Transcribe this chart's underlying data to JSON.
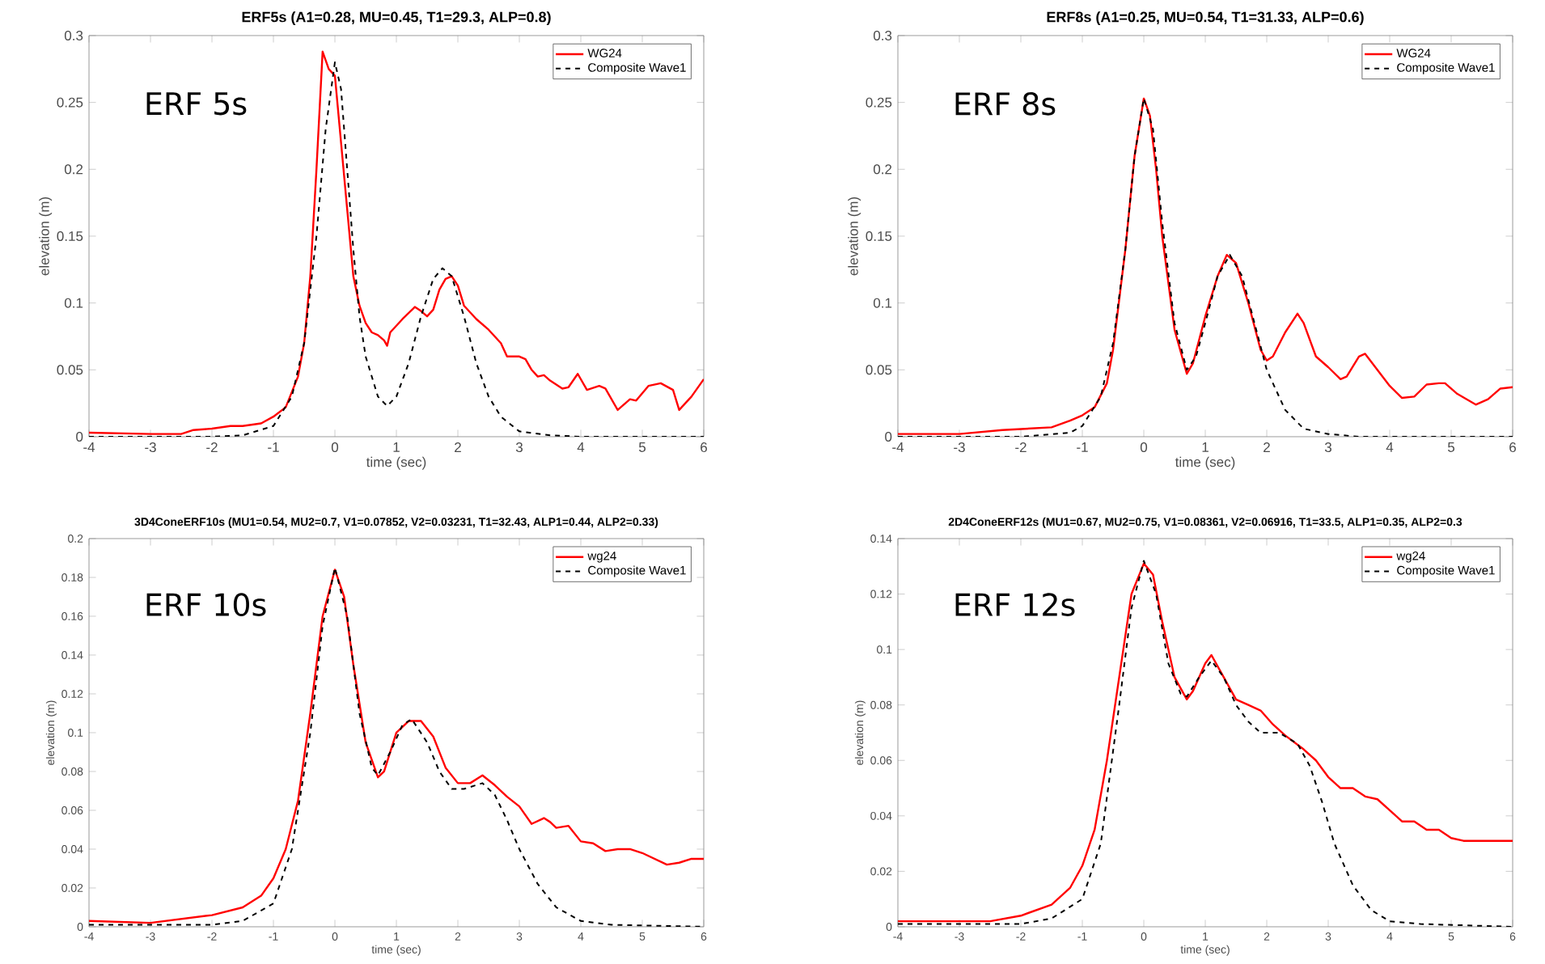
{
  "chart_data": [
    {
      "type": "line",
      "title": "ERF5s (A1=0.28, MU=0.45, T1=29.3, ALP=0.8)",
      "xlabel": "time (sec)",
      "ylabel": "elevation (m)",
      "annotations": [
        "ERF 5s"
      ],
      "legend": "top right",
      "xlim": [
        -4,
        6
      ],
      "ylim": [
        0,
        0.3
      ],
      "xticks": [
        -4,
        -3,
        -2,
        -1,
        0,
        1,
        2,
        3,
        4,
        5,
        6
      ],
      "yticks": [
        0,
        0.05,
        0.1,
        0.15,
        0.2,
        0.25,
        0.3
      ],
      "series": [
        {
          "name": "WG24",
          "color": "#ff0000",
          "line_style": "solid",
          "x": [
            -4,
            -3,
            -2.5,
            -2.3,
            -2,
            -1.7,
            -1.5,
            -1.2,
            -1,
            -0.8,
            -0.6,
            -0.5,
            -0.4,
            -0.3,
            -0.2,
            -0.1,
            0,
            0.1,
            0.2,
            0.3,
            0.4,
            0.5,
            0.6,
            0.7,
            0.8,
            0.85,
            0.9,
            1.0,
            1.1,
            1.3,
            1.4,
            1.5,
            1.6,
            1.7,
            1.8,
            1.9,
            2.0,
            2.1,
            2.3,
            2.5,
            2.7,
            2.8,
            3.0,
            3.1,
            3.2,
            3.3,
            3.4,
            3.5,
            3.7,
            3.8,
            3.95,
            4.1,
            4.3,
            4.4,
            4.6,
            4.8,
            4.9,
            5.1,
            5.3,
            5.5,
            5.6,
            5.8,
            6
          ],
          "values": [
            0.003,
            0.002,
            0.002,
            0.005,
            0.006,
            0.008,
            0.008,
            0.01,
            0.015,
            0.022,
            0.045,
            0.07,
            0.12,
            0.2,
            0.288,
            0.275,
            0.27,
            0.22,
            0.17,
            0.12,
            0.098,
            0.085,
            0.078,
            0.076,
            0.072,
            0.068,
            0.078,
            0.083,
            0.088,
            0.097,
            0.094,
            0.09,
            0.095,
            0.11,
            0.118,
            0.12,
            0.113,
            0.098,
            0.088,
            0.08,
            0.07,
            0.06,
            0.06,
            0.058,
            0.05,
            0.045,
            0.046,
            0.042,
            0.036,
            0.037,
            0.047,
            0.035,
            0.038,
            0.036,
            0.02,
            0.028,
            0.027,
            0.038,
            0.04,
            0.035,
            0.02,
            0.03,
            0.043
          ]
        },
        {
          "name": "Composite Wave1",
          "color": "#000000",
          "line_style": "dashed",
          "x": [
            -4,
            -2,
            -1.5,
            -1,
            -0.7,
            -0.5,
            -0.3,
            -0.15,
            0,
            0.1,
            0.2,
            0.3,
            0.4,
            0.5,
            0.7,
            0.85,
            1.0,
            1.2,
            1.4,
            1.6,
            1.75,
            1.9,
            2.1,
            2.3,
            2.5,
            2.7,
            3,
            3.5,
            4,
            6
          ],
          "values": [
            0,
            0,
            0.001,
            0.008,
            0.03,
            0.07,
            0.15,
            0.23,
            0.28,
            0.26,
            0.2,
            0.14,
            0.09,
            0.06,
            0.03,
            0.023,
            0.03,
            0.055,
            0.09,
            0.118,
            0.126,
            0.12,
            0.09,
            0.055,
            0.03,
            0.015,
            0.004,
            0.001,
            0,
            0
          ]
        }
      ]
    },
    {
      "type": "line",
      "title": "ERF8s (A1=0.25, MU=0.54, T1=31.33, ALP=0.6)",
      "xlabel": "time (sec)",
      "ylabel": "elevation (m)",
      "annotations": [
        "ERF 8s"
      ],
      "legend": "top right",
      "xlim": [
        -4,
        6
      ],
      "ylim": [
        0,
        0.3
      ],
      "xticks": [
        -4,
        -3,
        -2,
        -1,
        0,
        1,
        2,
        3,
        4,
        5,
        6
      ],
      "yticks": [
        0,
        0.05,
        0.1,
        0.15,
        0.2,
        0.25,
        0.3
      ],
      "series": [
        {
          "name": "WG24",
          "color": "#ff0000",
          "line_style": "solid",
          "x": [
            -4,
            -3,
            -2.3,
            -1.5,
            -1.2,
            -1,
            -0.8,
            -0.6,
            -0.5,
            -0.3,
            -0.15,
            0,
            0.1,
            0.2,
            0.3,
            0.5,
            0.7,
            0.8,
            1.0,
            1.2,
            1.35,
            1.5,
            1.7,
            1.9,
            2.0,
            2.1,
            2.3,
            2.5,
            2.6,
            2.8,
            3.0,
            3.2,
            3.3,
            3.5,
            3.6,
            3.8,
            4.0,
            4.2,
            4.4,
            4.6,
            4.8,
            4.9,
            5.1,
            5.4,
            5.6,
            5.8,
            6
          ],
          "values": [
            0.002,
            0.002,
            0.005,
            0.007,
            0.012,
            0.016,
            0.022,
            0.04,
            0.065,
            0.14,
            0.21,
            0.253,
            0.24,
            0.2,
            0.15,
            0.08,
            0.047,
            0.055,
            0.09,
            0.12,
            0.136,
            0.13,
            0.1,
            0.065,
            0.057,
            0.06,
            0.078,
            0.092,
            0.085,
            0.06,
            0.052,
            0.043,
            0.045,
            0.06,
            0.062,
            0.05,
            0.038,
            0.029,
            0.03,
            0.039,
            0.04,
            0.04,
            0.032,
            0.024,
            0.028,
            0.036,
            0.037
          ]
        },
        {
          "name": "Composite Wave1",
          "color": "#000000",
          "line_style": "dashed",
          "x": [
            -4,
            -2,
            -1.2,
            -1,
            -0.7,
            -0.5,
            -0.3,
            -0.15,
            0,
            0.15,
            0.3,
            0.5,
            0.7,
            0.85,
            1.0,
            1.2,
            1.4,
            1.6,
            1.8,
            2.0,
            2.3,
            2.6,
            3,
            3.5,
            6
          ],
          "values": [
            0,
            0,
            0.003,
            0.008,
            0.03,
            0.07,
            0.14,
            0.21,
            0.253,
            0.23,
            0.16,
            0.085,
            0.05,
            0.06,
            0.085,
            0.12,
            0.136,
            0.12,
            0.085,
            0.05,
            0.02,
            0.006,
            0.002,
            0,
            0
          ]
        }
      ]
    },
    {
      "type": "line",
      "title": "3D4ConeERF10s (MU1=0.54, MU2=0.7, V1=0.07852, V2=0.03231, T1=32.43, ALP1=0.44, ALP2=0.33)",
      "xlabel": "time (sec)",
      "ylabel": "elevation (m)",
      "annotations": [
        "ERF 10s"
      ],
      "legend": "top right",
      "xlim": [
        -4,
        6
      ],
      "ylim": [
        0,
        0.2
      ],
      "xticks": [
        -4,
        -3,
        -2,
        -1,
        0,
        1,
        2,
        3,
        4,
        5,
        6
      ],
      "yticks": [
        0,
        0.02,
        0.04,
        0.06,
        0.08,
        0.1,
        0.12,
        0.14,
        0.16,
        0.18,
        0.2
      ],
      "series": [
        {
          "name": "wg24",
          "color": "#ff0000",
          "line_style": "solid",
          "x": [
            -4,
            -3,
            -2.5,
            -2,
            -1.5,
            -1.2,
            -1,
            -0.8,
            -0.6,
            -0.4,
            -0.2,
            0,
            0.15,
            0.3,
            0.5,
            0.7,
            0.8,
            1.0,
            1.2,
            1.4,
            1.6,
            1.8,
            2.0,
            2.2,
            2.4,
            2.6,
            2.8,
            3.0,
            3.2,
            3.4,
            3.5,
            3.6,
            3.8,
            4.0,
            4.2,
            4.4,
            4.6,
            4.8,
            5.0,
            5.2,
            5.4,
            5.6,
            5.8,
            6
          ],
          "values": [
            0.003,
            0.002,
            0.004,
            0.006,
            0.01,
            0.016,
            0.025,
            0.04,
            0.065,
            0.11,
            0.16,
            0.184,
            0.17,
            0.135,
            0.095,
            0.077,
            0.08,
            0.1,
            0.106,
            0.106,
            0.098,
            0.082,
            0.074,
            0.074,
            0.078,
            0.073,
            0.067,
            0.062,
            0.053,
            0.056,
            0.054,
            0.051,
            0.052,
            0.044,
            0.043,
            0.039,
            0.04,
            0.04,
            0.038,
            0.035,
            0.032,
            0.033,
            0.035,
            0.035
          ]
        },
        {
          "name": "Composite Wave1",
          "color": "#000000",
          "line_style": "dashed",
          "x": [
            -4,
            -2,
            -1.5,
            -1,
            -0.7,
            -0.4,
            -0.2,
            0,
            0.2,
            0.4,
            0.6,
            0.7,
            0.9,
            1.1,
            1.25,
            1.5,
            1.7,
            1.9,
            2.1,
            2.4,
            2.6,
            2.8,
            3.0,
            3.3,
            3.6,
            4,
            4.5,
            6
          ],
          "values": [
            0.001,
            0.001,
            0.003,
            0.012,
            0.04,
            0.1,
            0.155,
            0.185,
            0.16,
            0.11,
            0.082,
            0.078,
            0.09,
            0.104,
            0.107,
            0.095,
            0.08,
            0.071,
            0.071,
            0.074,
            0.068,
            0.055,
            0.04,
            0.022,
            0.01,
            0.003,
            0.001,
            0
          ]
        }
      ]
    },
    {
      "type": "line",
      "title": "2D4ConeERF12s (MU1=0.67, MU2=0.75, V1=0.08361, V2=0.06916, T1=33.5, ALP1=0.35, ALP2=0.3",
      "xlabel": "time (sec)",
      "ylabel": "elevation (m)",
      "annotations": [
        "ERF 12s"
      ],
      "legend": "top right",
      "xlim": [
        -4,
        6
      ],
      "ylim": [
        0,
        0.14
      ],
      "xticks": [
        -4,
        -3,
        -2,
        -1,
        0,
        1,
        2,
        3,
        4,
        5,
        6
      ],
      "yticks": [
        0,
        0.02,
        0.04,
        0.06,
        0.08,
        0.1,
        0.12,
        0.14
      ],
      "series": [
        {
          "name": "wg24",
          "color": "#ff0000",
          "line_style": "solid",
          "x": [
            -4,
            -3,
            -2.5,
            -2,
            -1.5,
            -1.2,
            -1,
            -0.8,
            -0.6,
            -0.4,
            -0.2,
            0,
            0.15,
            0.3,
            0.5,
            0.7,
            0.8,
            1.0,
            1.1,
            1.3,
            1.5,
            1.7,
            1.9,
            2.1,
            2.3,
            2.6,
            2.8,
            3.0,
            3.2,
            3.4,
            3.6,
            3.8,
            4.0,
            4.2,
            4.4,
            4.6,
            4.8,
            5.0,
            5.2,
            5.6,
            6
          ],
          "values": [
            0.002,
            0.002,
            0.002,
            0.004,
            0.008,
            0.014,
            0.022,
            0.035,
            0.06,
            0.09,
            0.12,
            0.131,
            0.127,
            0.11,
            0.09,
            0.082,
            0.085,
            0.095,
            0.098,
            0.09,
            0.082,
            0.08,
            0.078,
            0.073,
            0.069,
            0.064,
            0.06,
            0.054,
            0.05,
            0.05,
            0.047,
            0.046,
            0.042,
            0.038,
            0.038,
            0.035,
            0.035,
            0.032,
            0.031,
            0.031,
            0.031
          ]
        },
        {
          "name": "Composite Wave1",
          "color": "#000000",
          "line_style": "dashed",
          "x": [
            -4,
            -2,
            -1.5,
            -1,
            -0.7,
            -0.4,
            -0.2,
            0,
            0.2,
            0.4,
            0.6,
            0.7,
            0.9,
            1.1,
            1.3,
            1.5,
            1.7,
            1.9,
            2.2,
            2.5,
            2.7,
            2.9,
            3.1,
            3.4,
            3.7,
            4,
            4.5,
            6
          ],
          "values": [
            0.001,
            0.001,
            0.003,
            0.01,
            0.03,
            0.08,
            0.115,
            0.132,
            0.12,
            0.095,
            0.084,
            0.083,
            0.09,
            0.096,
            0.09,
            0.08,
            0.074,
            0.07,
            0.07,
            0.066,
            0.058,
            0.045,
            0.03,
            0.015,
            0.006,
            0.002,
            0.001,
            0
          ]
        }
      ]
    }
  ]
}
